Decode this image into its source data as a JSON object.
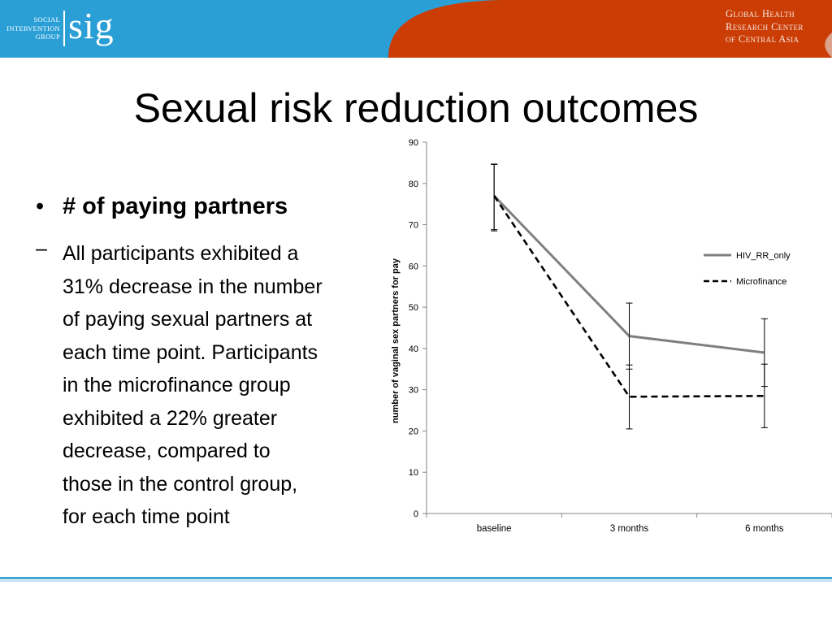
{
  "header": {
    "sig_small_lines": [
      "SOCIAL",
      "INTERVENTION",
      "GROUP"
    ],
    "sig_logo": "sig",
    "ghrc_lines": [
      "Global Health",
      "Research Center",
      "of  Central Asia"
    ],
    "colors": {
      "blue": "#2a9fd6",
      "orange": "#cc3d05"
    }
  },
  "slide": {
    "title": "Sexual risk reduction outcomes",
    "bullet": "# of paying partners",
    "sub_lines": [
      "All participants exhibited a",
      "31% decrease in the number",
      "of paying sexual partners at",
      "each time point. Participants",
      "in the microfinance group",
      "exhibited a 22% greater",
      "decrease, compared to",
      "those in the control group,",
      "for each time point"
    ]
  },
  "chart_data": {
    "type": "line",
    "categories": [
      "baseline",
      "3 months",
      "6 months"
    ],
    "ylabel": "number of vaginal sex partners for pay",
    "xlabel": "",
    "ylim": [
      0,
      90
    ],
    "yticks": [
      0,
      10,
      20,
      30,
      40,
      50,
      60,
      70,
      80,
      90
    ],
    "grid": false,
    "legend_position": "right",
    "series": [
      {
        "name": "HIV_RR_only",
        "values": [
          77,
          43,
          39
        ],
        "error_low": [
          68.5,
          20.5,
          20.8
        ],
        "error_high": [
          84.7,
          51,
          47.2
        ],
        "style": "solid",
        "color": "#7f7f7f"
      },
      {
        "name": "Microfinance",
        "values": [
          77,
          28.3,
          28.5
        ],
        "error_low": [
          68.8,
          35,
          30.8
        ],
        "error_high": [
          84.6,
          36,
          36.2
        ],
        "style": "dashed",
        "color": "#000000"
      }
    ]
  }
}
